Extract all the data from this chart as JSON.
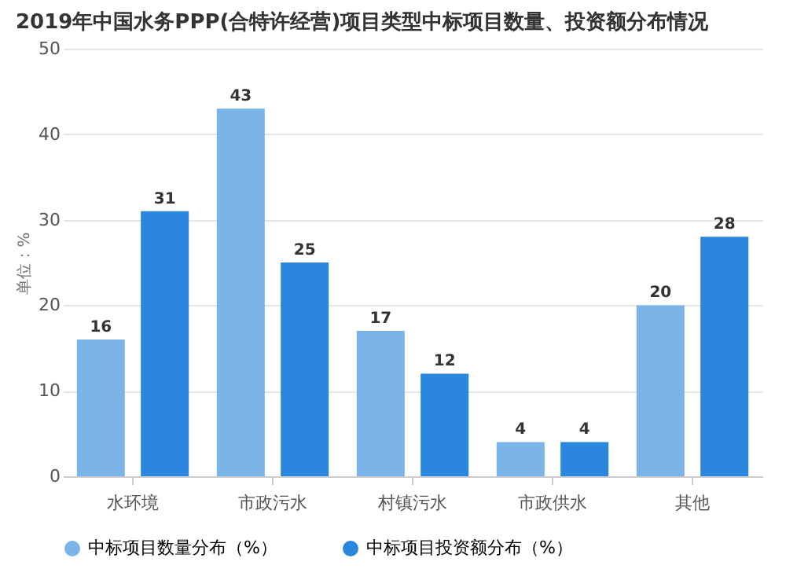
{
  "chart_data": {
    "type": "bar",
    "title": "2019年中国水务PPP(合特许经营)项目类型中标项目数量、投资额分布情况",
    "ylabel": "单位：%",
    "categories": [
      "水环境",
      "市政污水",
      "村镇污水",
      "市政供水",
      "其他"
    ],
    "series": [
      {
        "name": "中标项目数量分布（%）",
        "color": "#7ab4e8",
        "values": [
          16,
          43,
          17,
          4,
          20
        ]
      },
      {
        "name": "中标项目投资额分布（%）",
        "color": "#2a87dd",
        "values": [
          31,
          25,
          12,
          4,
          28
        ]
      }
    ],
    "ylim": [
      0,
      50
    ],
    "yticks": [
      0,
      10,
      20,
      30,
      40,
      50
    ],
    "grid": "y",
    "legend": "bottom",
    "data_labels": true
  }
}
